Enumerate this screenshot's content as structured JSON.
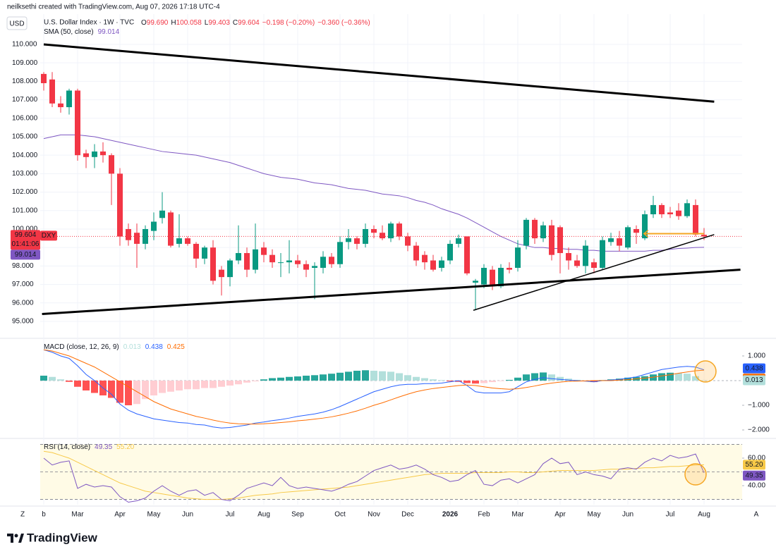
{
  "header_text": "neilksethi created with TradingView.com, Aug 07, 2026 17:18 UTC-4",
  "currency": "USD",
  "corner_left": "Z",
  "corner_right": "A",
  "footer_logo": "TradingView",
  "chart_data": [
    {
      "type": "candlestick",
      "title": "U.S. Dollar Index · 1W · TVC",
      "ohlc_legend": [
        {
          "label": "O",
          "value": "99.690"
        },
        {
          "label": "H",
          "value": "100.058"
        },
        {
          "label": "L",
          "value": "99.403"
        },
        {
          "label": "C",
          "value": "99.604"
        }
      ],
      "change": "−0.198 (−0.20%)",
      "change_ext": "−0.360 (−0.36%)",
      "symbol": "DXY",
      "countdown": "01:41:06",
      "last_price_label": "99.604",
      "up_color": "#089981",
      "down_color": "#f23645",
      "categories": [
        "b",
        null,
        null,
        null,
        "Mar",
        null,
        null,
        null,
        null,
        "Apr",
        null,
        null,
        null,
        "May",
        null,
        null,
        null,
        "Jun",
        null,
        null,
        null,
        null,
        "Jul",
        null,
        null,
        null,
        "Aug",
        null,
        null,
        null,
        "Sep",
        null,
        null,
        null,
        null,
        "Oct",
        null,
        null,
        null,
        "Nov",
        null,
        null,
        null,
        "Dec",
        null,
        null,
        null,
        null,
        "2026",
        null,
        null,
        null,
        "Feb",
        null,
        null,
        null,
        "Mar",
        null,
        null,
        null,
        null,
        "Apr",
        null,
        null,
        null,
        "May",
        null,
        null,
        null,
        "Jun",
        null,
        null,
        null,
        null,
        "Jul",
        null,
        null,
        null,
        "Aug"
      ],
      "open": [
        108.4,
        108.1,
        106.8,
        106.6,
        107.5,
        104.1,
        103.9,
        104.2,
        104.0,
        103.0,
        100.0,
        99.8,
        99.2,
        99.9,
        100.6,
        100.9,
        99.2,
        99.5,
        99.2,
        98.4,
        99.0,
        97.8,
        97.4,
        98.3,
        98.7,
        97.8,
        99.0,
        98.6,
        98.2,
        98.2,
        98.3,
        98.1,
        97.9,
        97.9,
        98.5,
        98.1,
        99.3,
        99.5,
        99.2,
        100.0,
        99.8,
        99.5,
        100.3,
        99.6,
        99.1,
        98.6,
        98.3,
        97.9,
        98.3,
        99.2,
        99.6,
        97.1,
        97.0,
        97.8,
        96.9,
        97.9,
        97.9,
        99.1,
        100.5,
        99.5,
        100.2,
        100.1,
        98.7,
        98.3,
        98.0,
        98.2,
        97.9,
        99.3,
        99.5,
        99.0,
        100.0,
        99.5,
        100.8,
        101.3,
        100.9,
        101.0,
        100.7,
        101.3,
        99.69
      ],
      "high": [
        108.5,
        108.5,
        107.2,
        107.6,
        107.6,
        104.3,
        104.6,
        104.7,
        104.1,
        103.3,
        100.3,
        100.3,
        100.2,
        100.9,
        102.0,
        101.0,
        100.8,
        99.6,
        99.3,
        99.1,
        99.4,
        98.0,
        98.4,
        100.2,
        99.0,
        100.3,
        99.3,
        98.9,
        98.7,
        99.4,
        98.6,
        98.3,
        98.2,
        98.8,
        98.7,
        99.6,
        100.0,
        99.6,
        100.3,
        100.2,
        100.2,
        100.4,
        100.4,
        99.8,
        99.3,
        98.8,
        98.6,
        98.5,
        99.4,
        99.7,
        99.6,
        97.3,
        98.1,
        98.0,
        98.1,
        98.2,
        99.4,
        100.6,
        100.6,
        100.4,
        100.5,
        100.2,
        99.0,
        98.6,
        99.4,
        98.4,
        99.6,
        99.8,
        99.9,
        100.2,
        100.2,
        101.0,
        101.8,
        101.4,
        101.2,
        101.4,
        101.6,
        101.6,
        100.058
      ],
      "low": [
        107.5,
        106.6,
        106.3,
        106.2,
        103.7,
        103.3,
        103.3,
        103.6,
        101.3,
        99.1,
        99.1,
        97.9,
        98.9,
        99.4,
        100.3,
        99.0,
        99.0,
        99.1,
        97.9,
        98.1,
        97.0,
        96.4,
        96.9,
        98.1,
        97.4,
        97.6,
        98.2,
        97.9,
        97.4,
        97.6,
        97.9,
        97.4,
        96.2,
        97.6,
        97.9,
        97.9,
        98.9,
        98.9,
        99.0,
        99.5,
        99.4,
        99.3,
        99.4,
        98.8,
        98.0,
        97.8,
        97.7,
        97.7,
        98.1,
        99.0,
        97.5,
        95.6,
        96.8,
        96.7,
        96.8,
        97.6,
        97.7,
        98.9,
        99.2,
        99.3,
        98.3,
        97.6,
        97.8,
        97.9,
        97.6,
        97.6,
        97.8,
        99.1,
        98.8,
        98.9,
        99.2,
        99.4,
        100.6,
        100.6,
        100.6,
        100.5,
        100.6,
        99.6,
        99.403
      ],
      "close": [
        107.9,
        106.8,
        106.6,
        107.5,
        104.0,
        103.9,
        104.2,
        104.0,
        103.0,
        99.6,
        99.4,
        99.2,
        100.0,
        100.4,
        101.0,
        99.1,
        99.5,
        99.2,
        98.4,
        99.0,
        97.2,
        97.4,
        98.3,
        98.7,
        97.8,
        98.9,
        98.6,
        98.2,
        98.2,
        98.3,
        98.1,
        97.8,
        98.0,
        98.5,
        98.1,
        99.3,
        99.5,
        99.2,
        100.0,
        99.8,
        99.5,
        100.3,
        99.6,
        99.1,
        98.3,
        98.2,
        97.8,
        98.3,
        99.2,
        99.5,
        97.6,
        97.2,
        97.9,
        96.9,
        97.9,
        97.8,
        99.0,
        100.5,
        99.5,
        100.2,
        98.6,
        98.7,
        98.3,
        98.0,
        99.1,
        97.9,
        99.4,
        99.5,
        99.1,
        100.1,
        99.8,
        100.8,
        101.3,
        100.8,
        100.8,
        100.7,
        101.4,
        99.7,
        99.604
      ],
      "overlays": [
        {
          "name": "SMA (50, close)",
          "color": "#7e57c2",
          "value_label": "99.014",
          "values": [
            104.9,
            105.0,
            105.1,
            105.1,
            105.1,
            105.05,
            105.0,
            104.9,
            104.8,
            104.7,
            104.6,
            104.5,
            104.4,
            104.3,
            104.2,
            104.15,
            104.1,
            104.05,
            104.0,
            103.9,
            103.8,
            103.7,
            103.6,
            103.45,
            103.3,
            103.15,
            103.0,
            102.9,
            102.8,
            102.75,
            102.7,
            102.6,
            102.5,
            102.45,
            102.4,
            102.3,
            102.2,
            102.15,
            102.1,
            102.0,
            101.9,
            101.85,
            101.8,
            101.7,
            101.55,
            101.45,
            101.3,
            101.1,
            100.95,
            100.8,
            100.6,
            100.35,
            100.1,
            99.85,
            99.6,
            99.4,
            99.2,
            99.1,
            99.0,
            99.0,
            98.95,
            98.95,
            98.9,
            98.9,
            98.85,
            98.85,
            98.8,
            98.8,
            98.8,
            98.8,
            98.8,
            98.8,
            98.85,
            98.85,
            98.9,
            98.95,
            98.97,
            99.0,
            99.014
          ]
        }
      ],
      "trendlines": [
        {
          "from": [
            0,
            110.0
          ],
          "to": [
            79.2,
            106.9
          ],
          "color": "#000000",
          "width": 3
        },
        {
          "from": [
            -0.2,
            95.4
          ],
          "to": [
            82.3,
            97.8
          ],
          "color": "#000000",
          "width": 3
        },
        {
          "from": [
            50.75,
            95.6
          ],
          "to": [
            79.2,
            99.7
          ],
          "color": "#000000",
          "width": 1.5
        },
        {
          "from": [
            70.9,
            99.75
          ],
          "to": [
            78,
            99.75
          ],
          "color": "#f5a623",
          "width": 2
        }
      ],
      "ylim": [
        94.16,
        111.64
      ],
      "yticks": [
        {
          "value": 95,
          "label": "95.000"
        },
        {
          "value": 96,
          "label": "96.000"
        },
        {
          "value": 97,
          "label": "97.000"
        },
        {
          "value": 98,
          "label": "98.000"
        },
        {
          "value": 99,
          "label": "99.000"
        },
        {
          "value": 100,
          "label": "100.000"
        },
        {
          "value": 101,
          "label": "101.000"
        },
        {
          "value": 102,
          "label": "102.000"
        },
        {
          "value": 103,
          "label": "103.000"
        },
        {
          "value": 104,
          "label": "104.000"
        },
        {
          "value": 105,
          "label": "105.000"
        },
        {
          "value": 106,
          "label": "106.000"
        },
        {
          "value": 107,
          "label": "107.000"
        },
        {
          "value": 108,
          "label": "108.000"
        },
        {
          "value": 109,
          "label": "109.000"
        },
        {
          "value": 110,
          "label": "110.000"
        }
      ],
      "grid": true
    },
    {
      "type": "macd",
      "title": "MACD (close, 12, 26, 9)",
      "histogram": {
        "value_label": "0.013",
        "colors": {
          "up_pos": "#26a69a",
          "down_pos": "#b2dfdb",
          "down_neg": "#ff5252",
          "up_neg": "#ffcdd2"
        },
        "values": [
          0.2,
          0.15,
          0.05,
          -0.05,
          -0.25,
          -0.4,
          -0.5,
          -0.6,
          -0.7,
          -0.9,
          -1.0,
          -0.95,
          -0.75,
          -0.6,
          -0.5,
          -0.45,
          -0.4,
          -0.35,
          -0.35,
          -0.3,
          -0.3,
          -0.25,
          -0.2,
          -0.15,
          -0.08,
          -0.03,
          0.05,
          0.1,
          0.12,
          0.15,
          0.17,
          0.2,
          0.22,
          0.25,
          0.28,
          0.32,
          0.36,
          0.4,
          0.42,
          0.4,
          0.38,
          0.36,
          0.3,
          0.22,
          0.15,
          0.1,
          0.05,
          0.02,
          -0.03,
          -0.05,
          -0.1,
          -0.12,
          -0.1,
          -0.06,
          -0.02,
          0.03,
          0.12,
          0.25,
          0.3,
          0.33,
          0.25,
          0.15,
          0.08,
          0.03,
          -0.03,
          -0.06,
          0.02,
          0.05,
          0.08,
          0.12,
          0.15,
          0.18,
          0.25,
          0.3,
          0.32,
          0.3,
          0.28,
          0.18,
          0.013
        ]
      },
      "macd": {
        "color": "#2962ff",
        "value_label": "0.438",
        "values": [
          1.25,
          1.15,
          1.0,
          0.9,
          0.6,
          0.25,
          0.0,
          -0.3,
          -0.55,
          -0.95,
          -1.2,
          -1.35,
          -1.45,
          -1.55,
          -1.6,
          -1.65,
          -1.7,
          -1.72,
          -1.78,
          -1.8,
          -1.88,
          -1.92,
          -1.9,
          -1.85,
          -1.8,
          -1.72,
          -1.68,
          -1.62,
          -1.58,
          -1.52,
          -1.45,
          -1.4,
          -1.35,
          -1.28,
          -1.18,
          -1.05,
          -0.9,
          -0.75,
          -0.6,
          -0.45,
          -0.35,
          -0.25,
          -0.18,
          -0.15,
          -0.15,
          -0.12,
          -0.12,
          -0.1,
          -0.05,
          0.0,
          -0.2,
          -0.45,
          -0.5,
          -0.5,
          -0.5,
          -0.45,
          -0.25,
          -0.05,
          0.05,
          0.12,
          0.08,
          0.05,
          0.02,
          0.0,
          -0.02,
          -0.05,
          0.0,
          0.02,
          0.05,
          0.1,
          0.15,
          0.25,
          0.35,
          0.45,
          0.5,
          0.55,
          0.58,
          0.55,
          0.438
        ]
      },
      "signal": {
        "color": "#ff6d00",
        "value_label": "0.425",
        "values": [
          1.25,
          1.2,
          1.1,
          1.0,
          0.85,
          0.7,
          0.55,
          0.35,
          0.15,
          -0.05,
          -0.25,
          -0.45,
          -0.65,
          -0.85,
          -1.0,
          -1.15,
          -1.25,
          -1.35,
          -1.45,
          -1.52,
          -1.6,
          -1.67,
          -1.72,
          -1.75,
          -1.76,
          -1.76,
          -1.75,
          -1.73,
          -1.7,
          -1.67,
          -1.63,
          -1.6,
          -1.56,
          -1.52,
          -1.47,
          -1.4,
          -1.32,
          -1.23,
          -1.12,
          -1.0,
          -0.9,
          -0.78,
          -0.66,
          -0.55,
          -0.45,
          -0.38,
          -0.32,
          -0.28,
          -0.24,
          -0.2,
          -0.18,
          -0.2,
          -0.25,
          -0.3,
          -0.33,
          -0.35,
          -0.33,
          -0.28,
          -0.22,
          -0.15,
          -0.1,
          -0.06,
          -0.03,
          -0.02,
          -0.01,
          0.0,
          0.0,
          0.0,
          0.02,
          0.04,
          0.07,
          0.1,
          0.14,
          0.19,
          0.24,
          0.3,
          0.35,
          0.4,
          0.425
        ]
      },
      "ylim": [
        -2.286,
        1.657
      ],
      "yticks": [
        {
          "value": 1,
          "label": "1.000"
        },
        {
          "value": -1,
          "label": "−1.000"
        },
        {
          "value": -2,
          "label": "−2.000"
        }
      ]
    },
    {
      "type": "rsi",
      "title": "RSI (14, close)",
      "background": "#fffbe6",
      "bands": [
        70,
        50,
        30
      ],
      "rsi": {
        "color": "#7e57c2",
        "value_label": "49.35",
        "values": [
          60,
          55,
          57,
          58,
          38,
          41,
          39,
          40,
          39,
          32,
          28,
          29,
          31,
          36,
          40,
          36,
          33,
          36,
          37,
          33,
          35,
          30,
          29,
          33,
          38,
          40,
          42,
          40,
          46,
          40,
          38,
          39,
          38,
          37,
          36,
          38,
          41,
          43,
          47,
          51,
          53,
          55,
          52,
          53,
          55,
          52,
          48,
          46,
          43,
          44,
          48,
          51,
          41,
          40,
          44,
          45,
          42,
          45,
          48,
          56,
          60,
          56,
          57,
          48,
          50,
          48,
          47,
          45,
          52,
          53,
          52,
          57,
          60,
          58,
          62,
          60,
          61,
          63,
          49.35
        ]
      },
      "ma": {
        "color": "#f7c948",
        "value_label": "55.20",
        "values": [
          65,
          64,
          62,
          60,
          57,
          54,
          51,
          48,
          45,
          42,
          40,
          38,
          36,
          35,
          34,
          33,
          32,
          31,
          30.5,
          30,
          30,
          30,
          30.5,
          31,
          32,
          33,
          33.5,
          34,
          35,
          35.5,
          36,
          36.5,
          37,
          37.5,
          38,
          38.5,
          39,
          40,
          41,
          42,
          43,
          44,
          45,
          46,
          47,
          48,
          48.5,
          49,
          49,
          49,
          49,
          49.5,
          49.5,
          49.5,
          49.5,
          50,
          50,
          49.5,
          49.5,
          50,
          50.5,
          51,
          51,
          51,
          51,
          51,
          51.5,
          52,
          52,
          52,
          52.5,
          53,
          53,
          53.5,
          54,
          54,
          54.5,
          55,
          55.2
        ]
      },
      "ylim": [
        26.2,
        73.3
      ],
      "yticks": [
        {
          "value": 60,
          "label": "60.00"
        },
        {
          "value": 40,
          "label": "40.00"
        }
      ]
    }
  ]
}
